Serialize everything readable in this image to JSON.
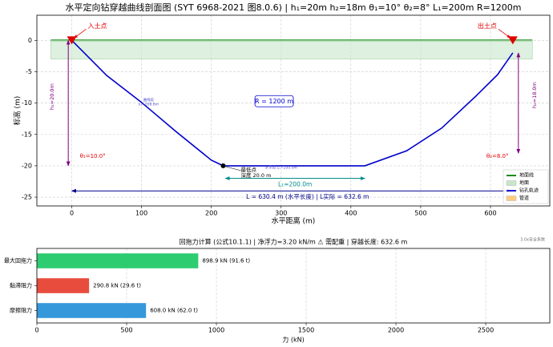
{
  "chart_data": [
    {
      "type": "line",
      "title": "水平定向钻穿越曲线剖面图 (SYT 6968-2021 图8.0.6) | h₁=20m h₂=18m θ₁=10° θ₂=8° L₁=200m R=1200m",
      "xlabel": "水平距离 (m)",
      "ylabel": "标高 (m)",
      "xlim": [
        -50,
        685
      ],
      "ylim": [
        -26.4,
        4
      ],
      "xticks": [
        0,
        100,
        200,
        300,
        400,
        500,
        600
      ],
      "yticks": [
        0,
        -5,
        -10,
        -15,
        -20,
        -25
      ],
      "grid": true,
      "legend": "lower right",
      "series": [
        {
          "name": "地面线",
          "color": "#008000",
          "x": [
            -30,
            660
          ],
          "values": [
            0,
            0
          ]
        },
        {
          "name": "地面",
          "color": "#c8e6c9",
          "kind": "band",
          "x": [
            -30,
            660
          ],
          "values": [
            0,
            0
          ],
          "lower": [
            -3,
            -3
          ]
        },
        {
          "name": "钻孔轨迹",
          "color": "#0000cc",
          "x": [
            0,
            50,
            100,
            150,
            200,
            217,
            420,
            480,
            530,
            580,
            610,
            632
          ],
          "values": [
            0,
            -5.6,
            -9.9,
            -14.6,
            -19.1,
            -20,
            -20,
            -17.6,
            -14,
            -8.8,
            -5.5,
            -2
          ]
        },
        {
          "name": "管道",
          "color": "#ffcc80",
          "kind": "band",
          "x": [],
          "values": [],
          "lower": []
        }
      ],
      "points": [
        {
          "label": "入土点",
          "x": 0,
          "y": 0,
          "color": "#e00000"
        },
        {
          "label": "出土点",
          "x": 632,
          "y": 0,
          "color": "#e00000"
        }
      ],
      "lowest": {
        "label": "最低点",
        "detail": "深度 20.0 m",
        "x": 217,
        "y": -20
      },
      "dimensions": [
        {
          "label": "h₁=20.0m",
          "x": -5,
          "y1": 0,
          "y2": -20,
          "color": "#800080"
        },
        {
          "label": "h₂=18.0m",
          "x": 640,
          "y1": -2,
          "y2": -18,
          "color": "#800080"
        },
        {
          "label": "L₁=200.0m",
          "y": -22,
          "x1": 220,
          "x2": 420,
          "color": "#008b8b"
        },
        {
          "label": "L = 630.4 m (水平长度)  |  L实际 = 632.6 m",
          "y": -24,
          "x1": 0,
          "x2": 630,
          "color": "#00008b"
        }
      ],
      "notes": [
        "θ₁=10.0°",
        "θ₂=8.0°",
        "R = 1200 m",
        "曲线段",
        "x₁=208.6m",
        "水平段 L₁=200.0m"
      ]
    },
    {
      "type": "bar",
      "orientation": "horizontal",
      "title": "回拖力计算 (公式10.1.1)  |  净浮力=3.20 kN/m ⚠ 需配重  |  穿越长度: 632.6 m",
      "note": "3.0x安全系数",
      "xlabel": "力 (kN)",
      "categories": [
        "最大回拖力",
        "黏滞阻力",
        "摩擦阻力"
      ],
      "values": [
        898.9,
        290.8,
        608.0
      ],
      "value_labels": [
        "898.9 kN (91.6 t)",
        "290.8 kN (29.6 t)",
        "608.0 kN (62.0 t)"
      ],
      "colors": [
        "#2ecc71",
        "#e74c3c",
        "#3498db"
      ],
      "xlim": [
        0,
        2857
      ],
      "xticks": [
        0,
        500,
        1000,
        1500,
        2000,
        2500
      ],
      "grid": true
    }
  ]
}
